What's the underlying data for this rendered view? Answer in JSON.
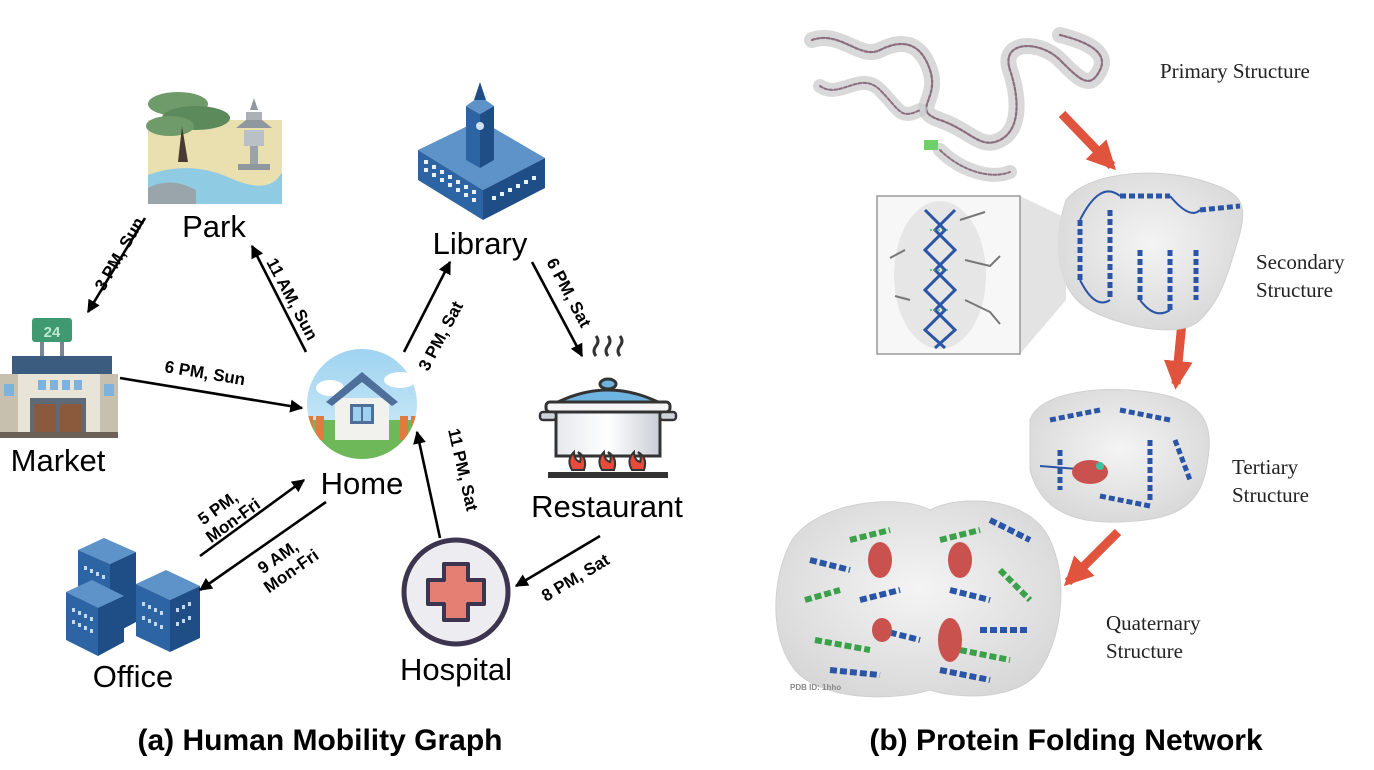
{
  "mobility": {
    "nodes": {
      "park": "Park",
      "library": "Library",
      "market": "Market",
      "home": "Home",
      "restaurant": "Restaurant",
      "office": "Office",
      "hospital": "Hospital"
    },
    "market_sign": "24",
    "edges": [
      {
        "from": "park",
        "to": "market",
        "label": "3 PM, Sun"
      },
      {
        "from": "home",
        "to": "park",
        "label": "11 AM, Sun"
      },
      {
        "from": "market",
        "to": "home",
        "label": "6 PM, Sun"
      },
      {
        "from": "home",
        "to": "library",
        "label": "3 PM, Sat"
      },
      {
        "from": "library",
        "to": "restaurant",
        "label": "6 PM, Sat"
      },
      {
        "from": "office",
        "to": "home",
        "label": "5 PM,\nMon-Fri"
      },
      {
        "from": "home",
        "to": "office",
        "label": "9 AM,\nMon-Fri"
      },
      {
        "from": "hospital",
        "to": "home",
        "label": "11 PM, Sat"
      },
      {
        "from": "restaurant",
        "to": "hospital",
        "label": "8 PM, Sat"
      }
    ],
    "caption": "(a) Human Mobility Graph"
  },
  "protein": {
    "stages": {
      "primary": "Primary Structure",
      "secondary_1": "Secondary",
      "secondary_2": "Structure",
      "tertiary_1": "Tertiary",
      "tertiary_2": "Structure",
      "quaternary_1": "Quaternary",
      "quaternary_2": "Structure"
    },
    "pdb_id": "PDB ID: 1hho",
    "caption": "(b) Protein Folding Network"
  },
  "colors": {
    "arrow_red": "#e0533d",
    "helix_blue": "#2a55a6",
    "helix_green": "#3aa04a",
    "heme_red": "#c9524f",
    "building_blue": "#2f6fb0"
  }
}
